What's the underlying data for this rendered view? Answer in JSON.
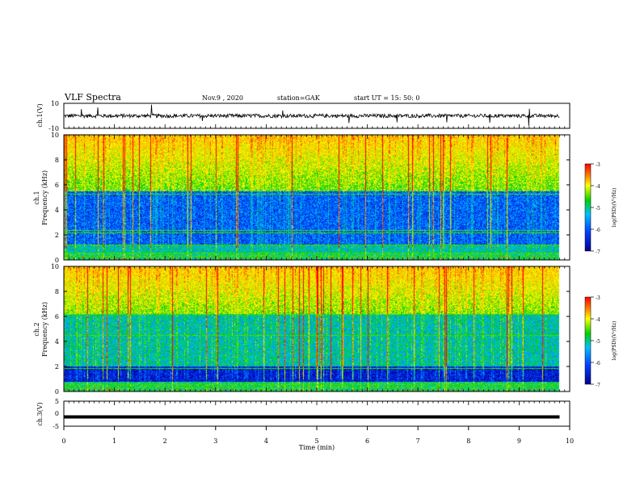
{
  "header": {
    "title": "VLF Spectra",
    "date": "Nov.9  , 2020",
    "station": "station=GAK",
    "start": "start  UT =   15: 50: 0"
  },
  "panels": {
    "ch1_wave": {
      "ylabel": "ch.1(V)",
      "ticks": [
        "10",
        "-10"
      ]
    },
    "ch1_spec": {
      "ylabel": "ch.1\nFrequency (kHz)",
      "ylabel_line1": "ch.1",
      "ylabel_line2": "Frequency  (kHz)",
      "ticks": [
        "0",
        "2",
        "4",
        "6",
        "8",
        "10"
      ]
    },
    "ch2_spec": {
      "ylabel_line1": "ch.2",
      "ylabel_line2": "Frequency  (kHz)",
      "ticks": [
        "0",
        "2",
        "4",
        "6",
        "8",
        "10"
      ]
    },
    "ch3_wave": {
      "ylabel": "ch.3(V)",
      "ticks": [
        "5",
        "0",
        "-5"
      ]
    }
  },
  "colorbar": {
    "label": "log(PSD)(V²/Hz)",
    "ticks": [
      "-3",
      "-4",
      "-5",
      "-6",
      "-7"
    ],
    "colors": [
      "#ff0000",
      "#ffb000",
      "#ffff00",
      "#00d000",
      "#00c0ff",
      "#0040ff",
      "#0000a0"
    ]
  },
  "xaxis": {
    "label": "Time  (min)",
    "ticks": [
      "0",
      "1",
      "2",
      "3",
      "4",
      "5",
      "6",
      "7",
      "8",
      "9",
      "10"
    ]
  },
  "chart_data": [
    {
      "type": "line",
      "title": "",
      "ylabel": "ch.1(V)",
      "xlabel": "",
      "xlim": [
        0,
        10
      ],
      "ylim": [
        -10,
        10
      ],
      "description_values": {
        "baseline": 0,
        "typical_amplitude": 1.5,
        "data_end_min": 9.8
      }
    },
    {
      "type": "heatmap",
      "ylabel": "ch.1 Frequency (kHz)",
      "xlim": [
        0,
        10
      ],
      "ylim": [
        0,
        10
      ],
      "zlim": [
        -7,
        -3
      ],
      "zlabel": "log(PSD)(V²/Hz)",
      "bands_khz": [
        0.3,
        0.6,
        1.2,
        2.2,
        2.4,
        5.3
      ],
      "data_end_min": 9.8
    },
    {
      "type": "heatmap",
      "ylabel": "ch.2 Frequency (kHz)",
      "xlim": [
        0,
        10
      ],
      "ylim": [
        0,
        10
      ],
      "zlim": [
        -7,
        -3
      ],
      "zlabel": "log(PSD)(V²/Hz)",
      "bands_khz": [
        0.3,
        0.6,
        1.9,
        4.5,
        6.2
      ],
      "data_end_min": 9.8
    },
    {
      "type": "line",
      "ylabel": "ch.3(V)",
      "xlabel": "Time  (min)",
      "xlim": [
        0,
        10
      ],
      "ylim": [
        -5,
        5
      ],
      "values_constant": -1.3,
      "data_end_min": 9.8
    }
  ]
}
